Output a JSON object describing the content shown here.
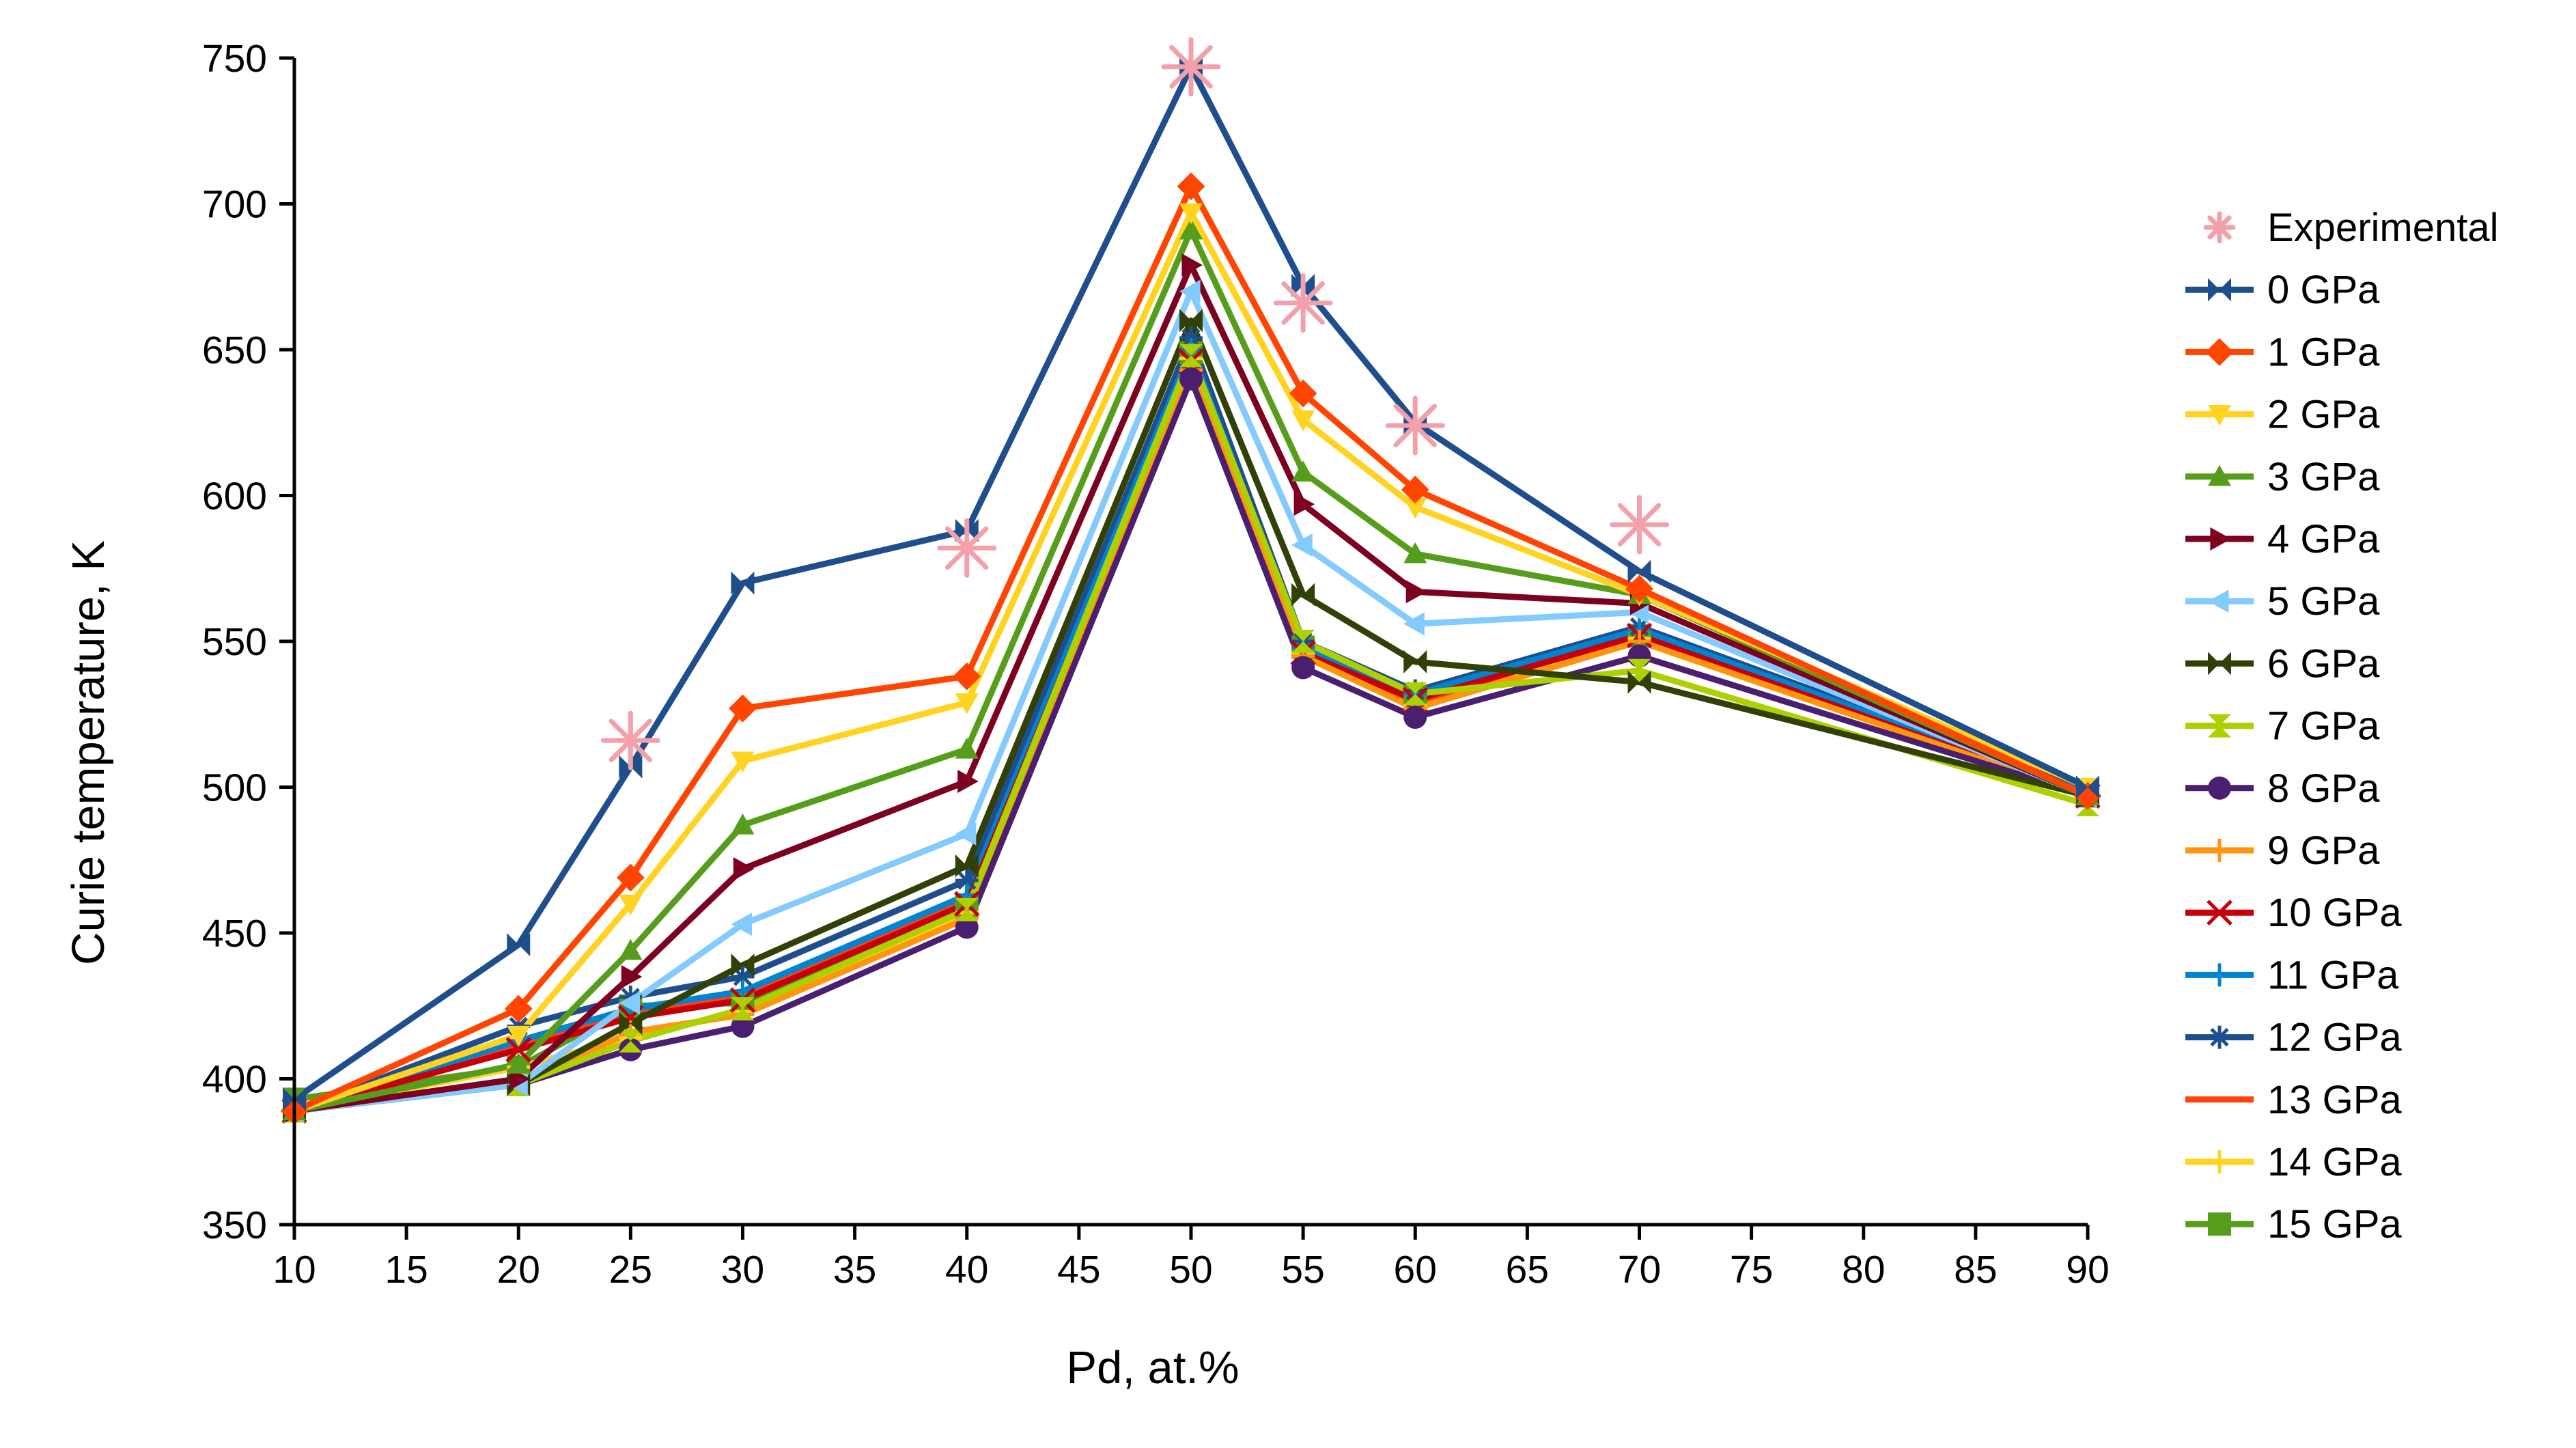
{
  "chart_data": {
    "type": "line",
    "title": "",
    "xlabel": "Pd, at.%",
    "ylabel": "Curie temperature, K",
    "xlim": [
      10,
      90
    ],
    "ylim": [
      350,
      750
    ],
    "x_ticks": [
      10,
      15,
      20,
      25,
      30,
      35,
      40,
      45,
      50,
      55,
      60,
      65,
      70,
      75,
      80,
      85,
      90
    ],
    "y_ticks": [
      350,
      400,
      450,
      500,
      550,
      600,
      650,
      700,
      750
    ],
    "x_tick_labels": [
      "10",
      "15",
      "20",
      "25",
      "30",
      "35",
      "40",
      "45",
      "50",
      "55",
      "60",
      "65",
      "70",
      "75",
      "80",
      "85",
      "90"
    ],
    "y_tick_labels": [
      "350",
      "400",
      "450",
      "500",
      "550",
      "600",
      "650",
      "700",
      "750"
    ],
    "grid": false,
    "legend_position": "right",
    "x": [
      10,
      20,
      25,
      30,
      40,
      50,
      55,
      60,
      70,
      90
    ],
    "experimental": {
      "name": "Experimental",
      "color": "#f4a0aa",
      "marker": "star",
      "x": [
        25,
        40,
        50,
        55,
        60,
        70
      ],
      "y": [
        516,
        582,
        747,
        666,
        624,
        590
      ]
    },
    "series": [
      {
        "name": "0 GPa",
        "color": "#1f4e8c",
        "marker": "bowtie",
        "values": [
          393,
          446,
          507,
          570,
          588,
          747,
          672,
          625,
          574,
          500
        ]
      },
      {
        "name": "1 GPa",
        "color": "#ff4500",
        "marker": "diamond",
        "values": [
          389,
          424,
          469,
          527,
          538,
          706,
          635,
          602,
          568,
          497
        ]
      },
      {
        "name": "2 GPa",
        "color": "#ffd320",
        "marker": "tri-down",
        "values": [
          389,
          415,
          460,
          509,
          529,
          697,
          626,
          596,
          566,
          500
        ]
      },
      {
        "name": "3 GPa",
        "color": "#579d1c",
        "marker": "tri-up",
        "values": [
          389,
          405,
          444,
          487,
          513,
          691,
          608,
          580,
          566,
          497
        ]
      },
      {
        "name": "4 GPa",
        "color": "#7e0021",
        "marker": "tri-right",
        "values": [
          389,
          400,
          435,
          472,
          502,
          679,
          597,
          567,
          563,
          497
        ]
      },
      {
        "name": "5 GPa",
        "color": "#83caff",
        "marker": "tri-left",
        "values": [
          389,
          398,
          426,
          453,
          484,
          670,
          583,
          556,
          560,
          497
        ]
      },
      {
        "name": "6 GPa",
        "color": "#314004",
        "marker": "bowtie",
        "values": [
          389,
          398,
          419,
          439,
          473,
          660,
          566,
          543,
          536,
          497
        ]
      },
      {
        "name": "7 GPa",
        "color": "#aecf00",
        "marker": "hourglass",
        "values": [
          389,
          398,
          413,
          424,
          458,
          648,
          550,
          532,
          540,
          494
        ]
      },
      {
        "name": "8 GPa",
        "color": "#4b1f6f",
        "marker": "circle",
        "values": [
          389,
          398,
          410,
          418,
          452,
          640,
          541,
          524,
          545,
          497
        ]
      },
      {
        "name": "9 GPa",
        "color": "#ff950e",
        "marker": "plus",
        "values": [
          389,
          398,
          416,
          422,
          455,
          643,
          545,
          527,
          550,
          497
        ]
      },
      {
        "name": "10 GPa",
        "color": "#c5000b",
        "marker": "x",
        "values": [
          389,
          410,
          421,
          427,
          460,
          646,
          546,
          530,
          552,
          497
        ]
      },
      {
        "name": "11 GPa",
        "color": "#0084d1",
        "marker": "plus",
        "values": [
          389,
          413,
          424,
          430,
          463,
          650,
          548,
          532,
          554,
          498
        ]
      },
      {
        "name": "12 GPa",
        "color": "#1f4e8c",
        "marker": "asterisk",
        "values": [
          389,
          418,
          428,
          435,
          468,
          654,
          550,
          533,
          555,
          499
        ]
      },
      {
        "name": "13 GPa",
        "color": "#ff420e",
        "marker": "none",
        "values": [
          389,
          412,
          422,
          428,
          462,
          644,
          547,
          529,
          553,
          498
        ]
      },
      {
        "name": "14 GPa",
        "color": "#ffd320",
        "marker": "plus",
        "values": [
          389,
          404,
          414,
          423,
          457,
          647,
          546,
          528,
          551,
          497
        ]
      },
      {
        "name": "15 GPa",
        "color": "#579d1c",
        "marker": "square",
        "values": [
          393,
          404,
          425,
          426,
          459,
          649,
          548,
          531,
          552,
          497
        ]
      }
    ]
  }
}
